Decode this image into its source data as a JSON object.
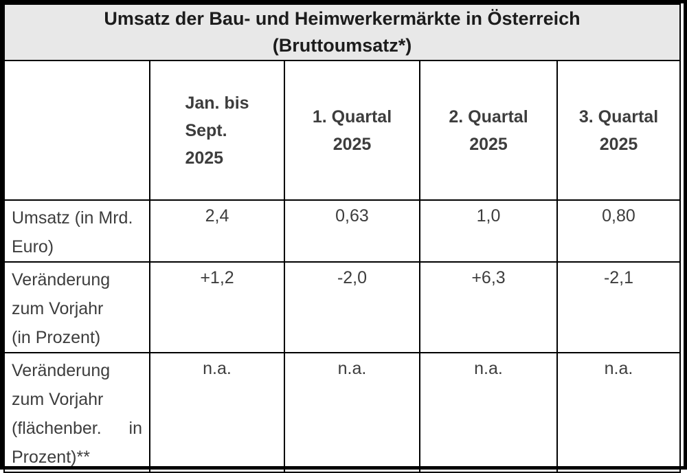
{
  "table": {
    "title_lines": [
      "Umsatz der Bau- und Heimwerkermärkte in Österreich",
      "(Bruttoumsatz*)"
    ],
    "columns": [
      {
        "lines": [
          "Jan. bis",
          "Sept.",
          "2025"
        ]
      },
      {
        "lines": [
          "1. Quartal",
          "2025"
        ]
      },
      {
        "lines": [
          "2. Quartal",
          "2025"
        ]
      },
      {
        "lines": [
          "3. Quartal",
          "2025"
        ]
      }
    ],
    "rows": [
      {
        "label_lines": [
          "Umsatz (in Mrd.",
          "Euro)"
        ],
        "values": [
          "2,4",
          "0,63",
          "1,0",
          "0,80"
        ]
      },
      {
        "label_lines": [
          "Veränderung",
          "zum Vorjahr",
          "(in Prozent)"
        ],
        "values": [
          "+1,2",
          "-2,0",
          "+6,3",
          "-2,1"
        ]
      },
      {
        "label_lines": [
          "Veränderung",
          "zum Vorjahr",
          "(flächenber. in",
          "Prozent)**"
        ],
        "values": [
          "n.a.",
          "n.a.",
          "n.a.",
          "n.a."
        ]
      }
    ],
    "colors": {
      "title_background": "#e8e8e8",
      "border": "#000000",
      "body_text": "#3d3d3d",
      "title_text": "#1c1c1c"
    }
  }
}
